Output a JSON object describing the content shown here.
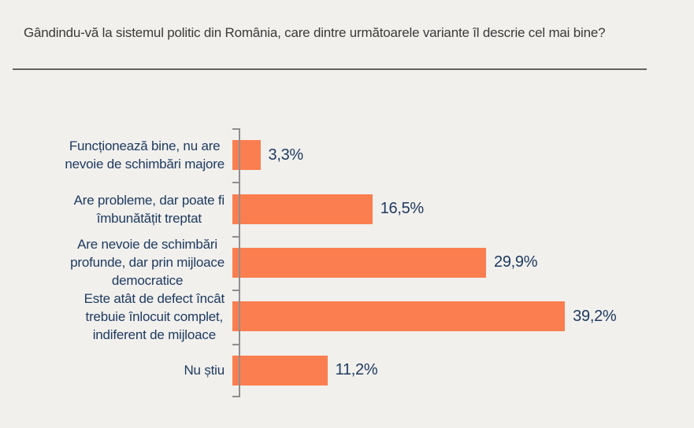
{
  "title": "Gândindu-vă la sistemul politic din România, care dintre următoarele variante îl descrie cel mai bine?",
  "chart_data": {
    "type": "bar",
    "orientation": "horizontal",
    "title": "Gândindu-vă la sistemul politic din România, care dintre următoarele variante îl descrie cel mai bine?",
    "categories": [
      "Funcționează bine, nu are nevoie de schimbări majore",
      "Are probleme, dar poate fi îmbunătățit treptat",
      "Are nevoie de schimbări profunde, dar prin mijloace democratice",
      "Este atât de defect încât trebuie înlocuit complet, indiferent de mijloace",
      "Nu știu"
    ],
    "categories_wrapped": [
      [
        "Funcționează bine, nu are",
        "nevoie de schimbări majore"
      ],
      [
        "Are probleme, dar poate fi",
        "îmbunătățit treptat"
      ],
      [
        "Are nevoie de schimbări",
        "profunde, dar prin mijloace",
        "democratice"
      ],
      [
        "Este atât de defect încât",
        "trebuie înlocuit complet,",
        "indiferent de mijloace"
      ],
      [
        "Nu știu"
      ]
    ],
    "values": [
      3.3,
      16.5,
      29.9,
      39.2,
      11.2
    ],
    "value_labels": [
      "3,3%",
      "16,5%",
      "29,9%",
      "39,2%",
      "11,2%"
    ],
    "unit": "%",
    "xlim": [
      0,
      40
    ],
    "grid": false,
    "legend": false,
    "bar_color": "#FB7E50",
    "text_color": "#1F3A60",
    "axis_color": "#8F8F8F",
    "background": "#F1F0ED",
    "title_color": "#3A3A3A"
  }
}
